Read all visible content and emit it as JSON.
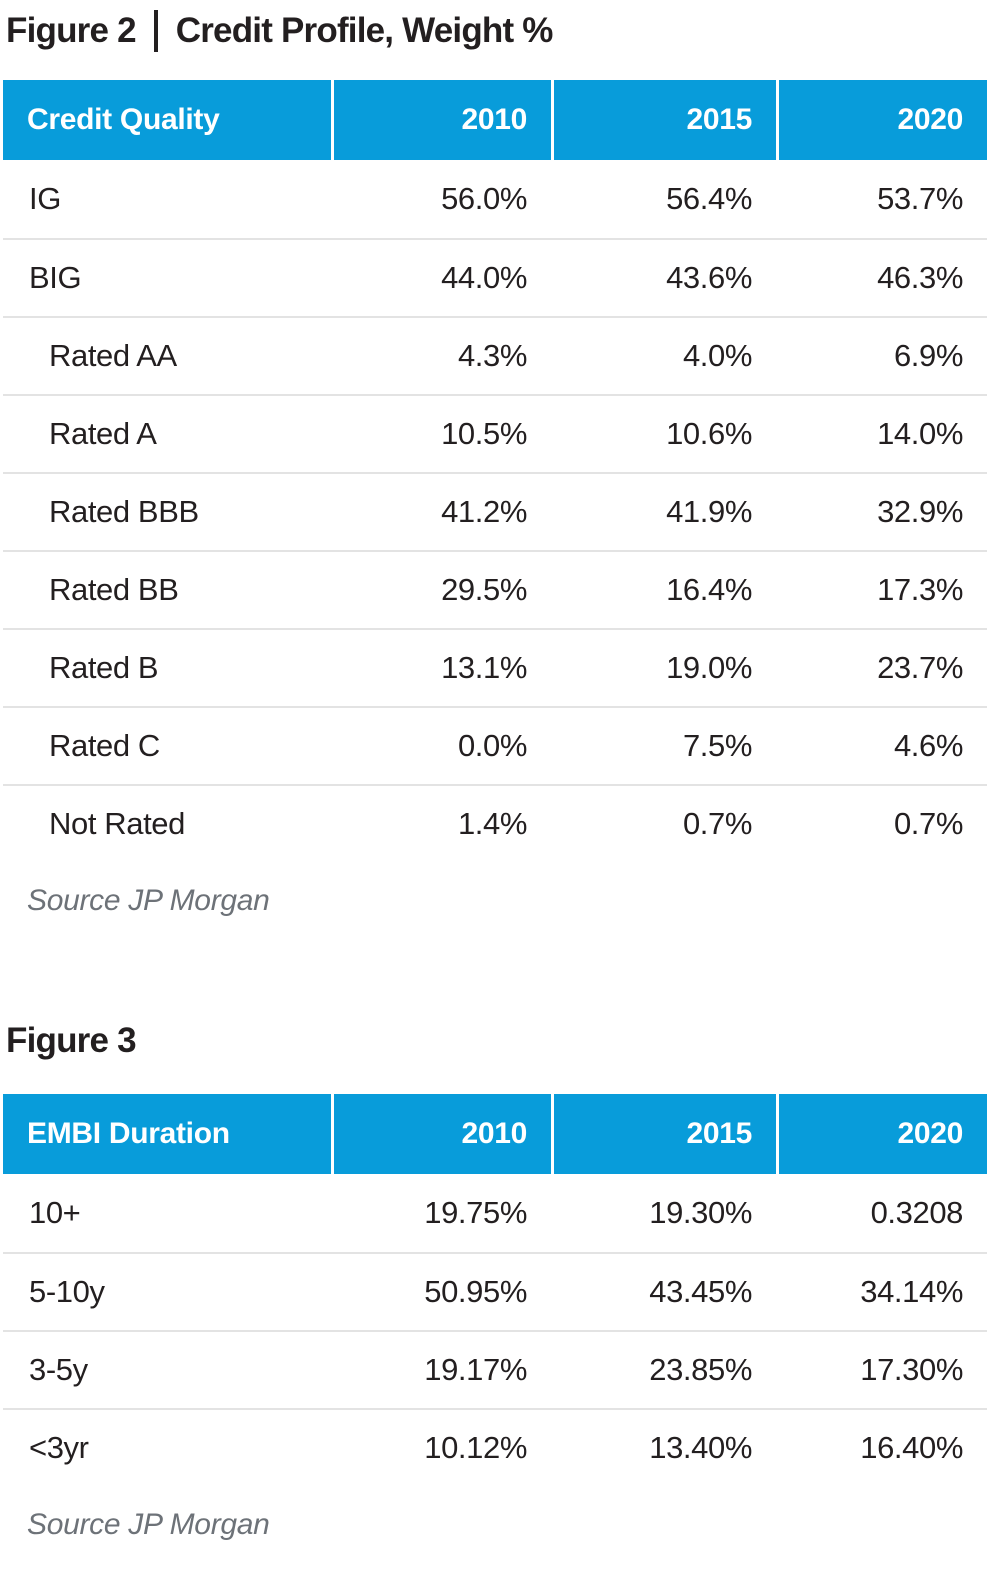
{
  "colors": {
    "header_bg": "#089cda",
    "header_text": "#ffffff",
    "body_text": "#231f20",
    "divider": "#e3e3e3",
    "source_text": "#6d7278"
  },
  "figure2": {
    "title_prefix": "Figure 2",
    "title_text": "Credit Profile, Weight %",
    "source": "Source JP Morgan",
    "table": {
      "header": {
        "label": "Credit Quality",
        "y2010": "2010",
        "y2015": "2015",
        "y2020": "2020"
      },
      "rows": [
        {
          "label": "IG",
          "v2010": "56.0%",
          "v2015": "56.4%",
          "v2020": "53.7%"
        },
        {
          "label": "BIG",
          "v2010": "44.0%",
          "v2015": "43.6%",
          "v2020": "46.3%"
        },
        {
          "label": "Rated AA",
          "v2010": "4.3%",
          "v2015": "4.0%",
          "v2020": "6.9%"
        },
        {
          "label": "Rated A",
          "v2010": "10.5%",
          "v2015": "10.6%",
          "v2020": "14.0%"
        },
        {
          "label": "Rated BBB",
          "v2010": "41.2%",
          "v2015": "41.9%",
          "v2020": "32.9%"
        },
        {
          "label": "Rated BB",
          "v2010": "29.5%",
          "v2015": "16.4%",
          "v2020": "17.3%"
        },
        {
          "label": "Rated B",
          "v2010": "13.1%",
          "v2015": "19.0%",
          "v2020": "23.7%"
        },
        {
          "label": "Rated C",
          "v2010": "0.0%",
          "v2015": "7.5%",
          "v2020": "4.6%"
        },
        {
          "label": "Not Rated",
          "v2010": "1.4%",
          "v2015": "0.7%",
          "v2020": "0.7%"
        }
      ]
    }
  },
  "figure3": {
    "title": "Figure 3",
    "source": "Source JP Morgan",
    "table": {
      "header": {
        "label": "EMBI Duration",
        "y2010": "2010",
        "y2015": "2015",
        "y2020": "2020"
      },
      "rows": [
        {
          "label": "10+",
          "v2010": "19.75%",
          "v2015": "19.30%",
          "v2020": "0.3208"
        },
        {
          "label": "5-10y",
          "v2010": "50.95%",
          "v2015": "43.45%",
          "v2020": "34.14%"
        },
        {
          "label": "3-5y",
          "v2010": "19.17%",
          "v2015": "23.85%",
          "v2020": "17.30%"
        },
        {
          "label": "<3yr",
          "v2010": "10.12%",
          "v2015": "13.40%",
          "v2020": "16.40%"
        }
      ]
    }
  },
  "chart_data": [
    {
      "type": "table",
      "title": "Figure 2 | Credit Profile, Weight %",
      "columns": [
        "Credit Quality",
        "2010",
        "2015",
        "2020"
      ],
      "rows": [
        [
          "IG",
          "56.0%",
          "56.4%",
          "53.7%"
        ],
        [
          "BIG",
          "44.0%",
          "43.6%",
          "46.3%"
        ],
        [
          "Rated AA",
          "4.3%",
          "4.0%",
          "6.9%"
        ],
        [
          "Rated A",
          "10.5%",
          "10.6%",
          "14.0%"
        ],
        [
          "Rated BBB",
          "41.2%",
          "41.9%",
          "32.9%"
        ],
        [
          "Rated BB",
          "29.5%",
          "16.4%",
          "17.3%"
        ],
        [
          "Rated B",
          "13.1%",
          "19.0%",
          "23.7%"
        ],
        [
          "Rated C",
          "0.0%",
          "7.5%",
          "4.6%"
        ],
        [
          "Not Rated",
          "1.4%",
          "0.7%",
          "0.7%"
        ]
      ],
      "source": "Source JP Morgan"
    },
    {
      "type": "table",
      "title": "Figure 3",
      "columns": [
        "EMBI Duration",
        "2010",
        "2015",
        "2020"
      ],
      "rows": [
        [
          "10+",
          "19.75%",
          "19.30%",
          "0.3208"
        ],
        [
          "5-10y",
          "50.95%",
          "43.45%",
          "34.14%"
        ],
        [
          "3-5y",
          "19.17%",
          "23.85%",
          "17.30%"
        ],
        [
          "<3yr",
          "10.12%",
          "13.40%",
          "16.40%"
        ]
      ],
      "source": "Source JP Morgan"
    }
  ]
}
